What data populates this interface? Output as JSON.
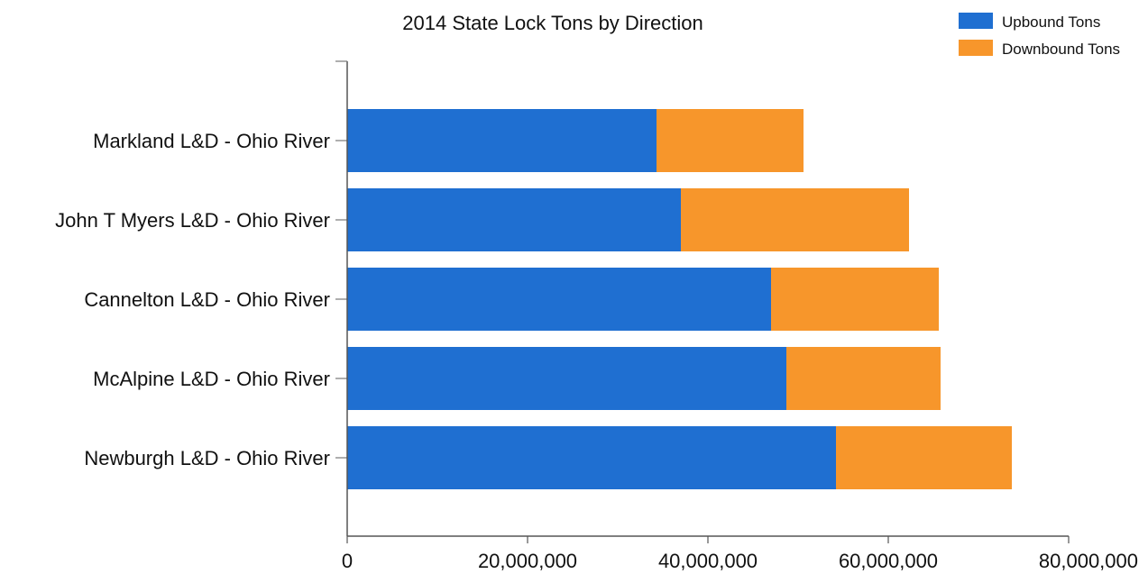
{
  "chart_data": {
    "type": "bar",
    "orientation": "horizontal",
    "stacked": true,
    "title": "2014 State Lock Tons by Direction",
    "categories": [
      "Markland L&D - Ohio River",
      "John T Myers L&D - Ohio River",
      "Cannelton L&D - Ohio River",
      "McAlpine L&D - Ohio River",
      "Newburgh L&D - Ohio River"
    ],
    "series": [
      {
        "name": "Upbound Tons",
        "color": "#1f6fd1",
        "values": [
          34300000,
          37000000,
          47000000,
          48700000,
          54200000
        ]
      },
      {
        "name": "Downbound Tons",
        "color": "#f7962b",
        "values": [
          16300000,
          25300000,
          18600000,
          17100000,
          19500000
        ]
      }
    ],
    "xlim": [
      0,
      80000000
    ],
    "xticks": [
      0,
      20000000,
      40000000,
      60000000,
      80000000
    ],
    "xtick_labels": [
      "0",
      "20,000,000",
      "40,000,000",
      "60,000,000",
      "80,000,000"
    ],
    "legend": "top-right",
    "grid": false
  }
}
